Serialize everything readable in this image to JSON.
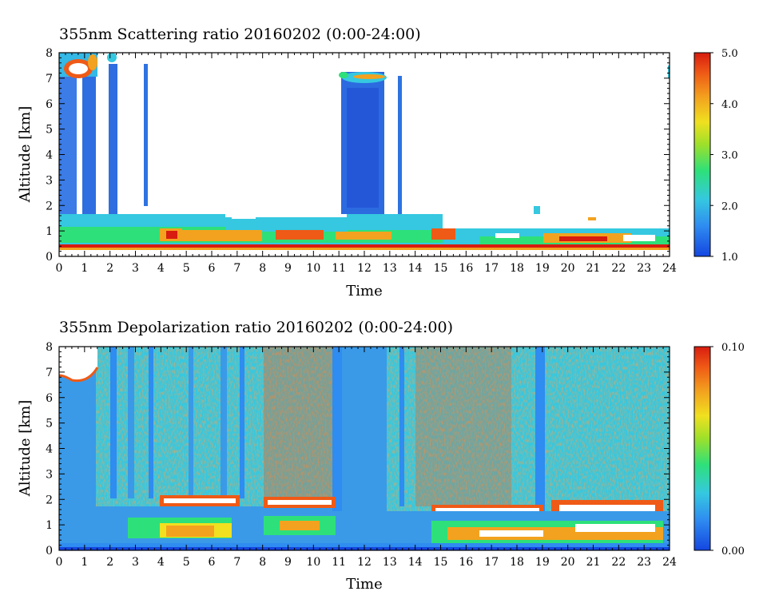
{
  "chart_data": [
    {
      "type": "heatmap",
      "title": "355nm Scattering ratio  20160202 (0:00-24:00)",
      "xlabel": "Time",
      "ylabel": "Altitude [km]",
      "xlim": [
        0,
        24
      ],
      "ylim": [
        0,
        8
      ],
      "x_ticks": [
        "0",
        "1",
        "2",
        "3",
        "4",
        "5",
        "6",
        "7",
        "8",
        "9",
        "10",
        "11",
        "12",
        "13",
        "14",
        "15",
        "16",
        "17",
        "18",
        "19",
        "20",
        "21",
        "22",
        "23",
        "24"
      ],
      "y_ticks": [
        "0",
        "1",
        "2",
        "3",
        "4",
        "5",
        "6",
        "7",
        "8"
      ],
      "colorbar": {
        "min": 1.0,
        "max": 5.0,
        "labels": [
          "1.0",
          "2.0",
          "3.0",
          "4.0",
          "5.0"
        ]
      },
      "colormap": [
        "#1446e0",
        "#2f8cf0",
        "#35c8e0",
        "#2ee07a",
        "#9ee02a",
        "#f0e020",
        "#f3a21f",
        "#ef5a16",
        "#d81c0f"
      ]
    },
    {
      "type": "heatmap",
      "title": "355nm Depolarization ratio  20160202 (0:00-24:00)",
      "xlabel": "Time",
      "ylabel": "Altitude [km]",
      "xlim": [
        0,
        24
      ],
      "ylim": [
        0,
        8
      ],
      "x_ticks": [
        "0",
        "1",
        "2",
        "3",
        "4",
        "5",
        "6",
        "7",
        "8",
        "9",
        "10",
        "11",
        "12",
        "13",
        "14",
        "15",
        "16",
        "17",
        "18",
        "19",
        "20",
        "21",
        "22",
        "23",
        "24"
      ],
      "y_ticks": [
        "0",
        "1",
        "2",
        "3",
        "4",
        "5",
        "6",
        "7",
        "8"
      ],
      "colorbar": {
        "min": 0.0,
        "max": 0.1,
        "labels": [
          "0.00",
          "0.10"
        ]
      },
      "colormap": [
        "#1446e0",
        "#2f8cf0",
        "#35c8e0",
        "#2ee07a",
        "#9ee02a",
        "#f0e020",
        "#f3a21f",
        "#ef5a16",
        "#d81c0f"
      ]
    }
  ]
}
